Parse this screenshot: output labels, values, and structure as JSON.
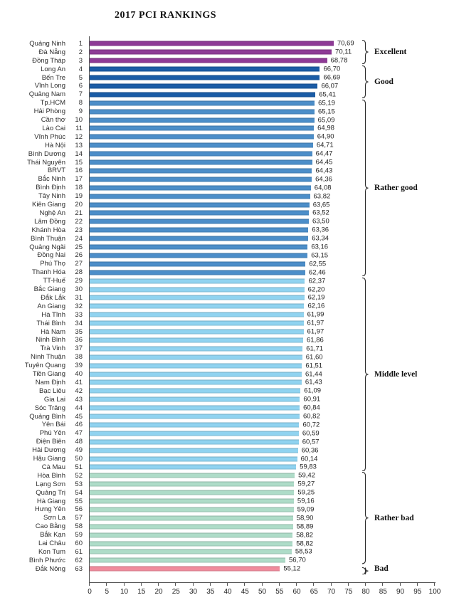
{
  "chart_data": {
    "type": "bar",
    "orientation": "horizontal",
    "title": "2017 PCI RANKINGS",
    "xlim": [
      0,
      100
    ],
    "x_ticks": [
      0,
      5,
      10,
      15,
      20,
      25,
      30,
      35,
      40,
      45,
      50,
      55,
      60,
      65,
      70,
      75,
      80,
      85,
      90,
      95,
      100
    ],
    "grid": false,
    "decimal_separator": ",",
    "legend_position": "right-brackets",
    "groups": [
      {
        "label": "Excellent",
        "color": "#8E3A96",
        "start_rank": 1,
        "end_rank": 3
      },
      {
        "label": "Good",
        "color": "#1A5CA6",
        "start_rank": 4,
        "end_rank": 7
      },
      {
        "label": "Rather good",
        "color": "#4C8EC9",
        "start_rank": 8,
        "end_rank": 28
      },
      {
        "label": "Middle level",
        "color": "#90D3F0",
        "start_rank": 29,
        "end_rank": 51
      },
      {
        "label": "Rather bad",
        "color": "#AEDCC8",
        "start_rank": 52,
        "end_rank": 62
      },
      {
        "label": "Bad",
        "color": "#F08B9C",
        "start_rank": 63,
        "end_rank": 63
      }
    ],
    "rows": [
      {
        "rank": 1,
        "province": "Quảng Ninh",
        "value": 70.69,
        "display": "70,69",
        "group": "Excellent"
      },
      {
        "rank": 2,
        "province": "Đà Nẵng",
        "value": 70.11,
        "display": "70,11",
        "group": "Excellent"
      },
      {
        "rank": 3,
        "province": "Đồng Tháp",
        "value": 68.78,
        "display": "68,78",
        "group": "Excellent"
      },
      {
        "rank": 4,
        "province": "Long An",
        "value": 66.7,
        "display": "66,70",
        "group": "Good"
      },
      {
        "rank": 5,
        "province": "Bến Tre",
        "value": 66.69,
        "display": "66,69",
        "group": "Good"
      },
      {
        "rank": 6,
        "province": "Vĩnh Long",
        "value": 66.07,
        "display": "66,07",
        "group": "Good"
      },
      {
        "rank": 7,
        "province": "Quảng Nam",
        "value": 65.41,
        "display": "65,41",
        "group": "Good"
      },
      {
        "rank": 8,
        "province": "Tp.HCM",
        "value": 65.19,
        "display": "65,19",
        "group": "Rather good"
      },
      {
        "rank": 9,
        "province": "Hải Phòng",
        "value": 65.15,
        "display": "65,15",
        "group": "Rather good"
      },
      {
        "rank": 10,
        "province": "Cần thơ",
        "value": 65.09,
        "display": "65,09",
        "group": "Rather good"
      },
      {
        "rank": 11,
        "province": "Lào Cai",
        "value": 64.98,
        "display": "64,98",
        "group": "Rather good"
      },
      {
        "rank": 12,
        "province": "Vĩnh Phúc",
        "value": 64.9,
        "display": "64,90",
        "group": "Rather good"
      },
      {
        "rank": 13,
        "province": "Hà Nội",
        "value": 64.71,
        "display": "64,71",
        "group": "Rather good"
      },
      {
        "rank": 14,
        "province": "Bình Dương",
        "value": 64.47,
        "display": "64,47",
        "group": "Rather good"
      },
      {
        "rank": 15,
        "province": "Thái Nguyên",
        "value": 64.45,
        "display": "64,45",
        "group": "Rather good"
      },
      {
        "rank": 16,
        "province": "BRVT",
        "value": 64.43,
        "display": "64,43",
        "group": "Rather good"
      },
      {
        "rank": 17,
        "province": "Bắc Ninh",
        "value": 64.36,
        "display": "64,36",
        "group": "Rather good"
      },
      {
        "rank": 18,
        "province": "Bình Định",
        "value": 64.08,
        "display": "64,08",
        "group": "Rather good"
      },
      {
        "rank": 19,
        "province": "Tây Ninh",
        "value": 63.82,
        "display": "63,82",
        "group": "Rather good"
      },
      {
        "rank": 20,
        "province": "Kiên Giang",
        "value": 63.65,
        "display": "63,65",
        "group": "Rather good"
      },
      {
        "rank": 21,
        "province": "Nghệ An",
        "value": 63.52,
        "display": "63,52",
        "group": "Rather good"
      },
      {
        "rank": 22,
        "province": "Lâm Đồng",
        "value": 63.5,
        "display": "63,50",
        "group": "Rather good"
      },
      {
        "rank": 23,
        "province": "Khánh Hòa",
        "value": 63.36,
        "display": "63,36",
        "group": "Rather good"
      },
      {
        "rank": 24,
        "province": "Bình Thuận",
        "value": 63.34,
        "display": "63,34",
        "group": "Rather good"
      },
      {
        "rank": 25,
        "province": "Quảng Ngãi",
        "value": 63.16,
        "display": "63,16",
        "group": "Rather good"
      },
      {
        "rank": 26,
        "province": "Đồng Nai",
        "value": 63.15,
        "display": "63,15",
        "group": "Rather good"
      },
      {
        "rank": 27,
        "province": "Phú Thọ",
        "value": 62.55,
        "display": "62,55",
        "group": "Rather good"
      },
      {
        "rank": 28,
        "province": "Thanh Hóa",
        "value": 62.46,
        "display": "62,46",
        "group": "Rather good"
      },
      {
        "rank": 29,
        "province": "TT-Huế",
        "value": 62.37,
        "display": "62,37",
        "group": "Middle level"
      },
      {
        "rank": 30,
        "province": "Bắc Giang",
        "value": 62.2,
        "display": "62,20",
        "group": "Middle level"
      },
      {
        "rank": 31,
        "province": "Đắk Lắk",
        "value": 62.19,
        "display": "62,19",
        "group": "Middle level"
      },
      {
        "rank": 32,
        "province": "An Giang",
        "value": 62.16,
        "display": "62,16",
        "group": "Middle level"
      },
      {
        "rank": 33,
        "province": "Hà Tĩnh",
        "value": 61.99,
        "display": "61,99",
        "group": "Middle level"
      },
      {
        "rank": 34,
        "province": "Thái Bình",
        "value": 61.97,
        "display": "61,97",
        "group": "Middle level"
      },
      {
        "rank": 35,
        "province": "Hà Nam",
        "value": 61.97,
        "display": "61,97",
        "group": "Middle level"
      },
      {
        "rank": 36,
        "province": "Ninh Bình",
        "value": 61.86,
        "display": "61,86",
        "group": "Middle level"
      },
      {
        "rank": 37,
        "province": "Trà Vinh",
        "value": 61.71,
        "display": "61,71",
        "group": "Middle level"
      },
      {
        "rank": 38,
        "province": "Ninh Thuận",
        "value": 61.6,
        "display": "61,60",
        "group": "Middle level"
      },
      {
        "rank": 39,
        "province": "Tuyên Quang",
        "value": 61.51,
        "display": "61,51",
        "group": "Middle level"
      },
      {
        "rank": 40,
        "province": "Tiền Giang",
        "value": 61.44,
        "display": "61,44",
        "group": "Middle level"
      },
      {
        "rank": 41,
        "province": "Nam Định",
        "value": 61.43,
        "display": "61,43",
        "group": "Middle level"
      },
      {
        "rank": 42,
        "province": "Bạc Liêu",
        "value": 61.09,
        "display": "61,09",
        "group": "Middle level"
      },
      {
        "rank": 43,
        "province": "Gia Lai",
        "value": 60.91,
        "display": "60,91",
        "group": "Middle level"
      },
      {
        "rank": 44,
        "province": "Sóc Trăng",
        "value": 60.84,
        "display": "60,84",
        "group": "Middle level"
      },
      {
        "rank": 45,
        "province": "Quảng Bình",
        "value": 60.82,
        "display": "60,82",
        "group": "Middle level"
      },
      {
        "rank": 46,
        "province": "Yên Bái",
        "value": 60.72,
        "display": "60,72",
        "group": "Middle level"
      },
      {
        "rank": 47,
        "province": "Phú Yên",
        "value": 60.59,
        "display": "60,59",
        "group": "Middle level"
      },
      {
        "rank": 48,
        "province": "Điện Biên",
        "value": 60.57,
        "display": "60,57",
        "group": "Middle level"
      },
      {
        "rank": 49,
        "province": "Hải Dương",
        "value": 60.36,
        "display": "60,36",
        "group": "Middle level"
      },
      {
        "rank": 50,
        "province": "Hậu Giang",
        "value": 60.14,
        "display": "60,14",
        "group": "Middle level"
      },
      {
        "rank": 51,
        "province": "Cà Mau",
        "value": 59.83,
        "display": "59,83",
        "group": "Middle level"
      },
      {
        "rank": 52,
        "province": "Hòa Bình",
        "value": 59.42,
        "display": "59,42",
        "group": "Rather bad"
      },
      {
        "rank": 53,
        "province": "Lạng Sơn",
        "value": 59.27,
        "display": "59,27",
        "group": "Rather bad"
      },
      {
        "rank": 54,
        "province": "Quảng Trị",
        "value": 59.25,
        "display": "59,25",
        "group": "Rather bad"
      },
      {
        "rank": 55,
        "province": "Hà Giang",
        "value": 59.16,
        "display": "59,16",
        "group": "Rather bad"
      },
      {
        "rank": 56,
        "province": "Hưng Yên",
        "value": 59.09,
        "display": "59,09",
        "group": "Rather bad"
      },
      {
        "rank": 57,
        "province": "Sơn La",
        "value": 58.9,
        "display": "58,90",
        "group": "Rather bad"
      },
      {
        "rank": 58,
        "province": "Cao Bằng",
        "value": 58.89,
        "display": "58,89",
        "group": "Rather bad"
      },
      {
        "rank": 59,
        "province": "Bắk Kạn",
        "value": 58.82,
        "display": "58,82",
        "group": "Rather bad"
      },
      {
        "rank": 60,
        "province": "Lai Châu",
        "value": 58.82,
        "display": "58,82",
        "group": "Rather bad"
      },
      {
        "rank": 61,
        "province": "Kon Tum",
        "value": 58.53,
        "display": "58,53",
        "group": "Rather bad"
      },
      {
        "rank": 62,
        "province": "Bình Phước",
        "value": 56.7,
        "display": "56,70",
        "group": "Rather bad"
      },
      {
        "rank": 63,
        "province": "Đắk Nông",
        "value": 55.12,
        "display": "55,12",
        "group": "Bad"
      }
    ]
  }
}
